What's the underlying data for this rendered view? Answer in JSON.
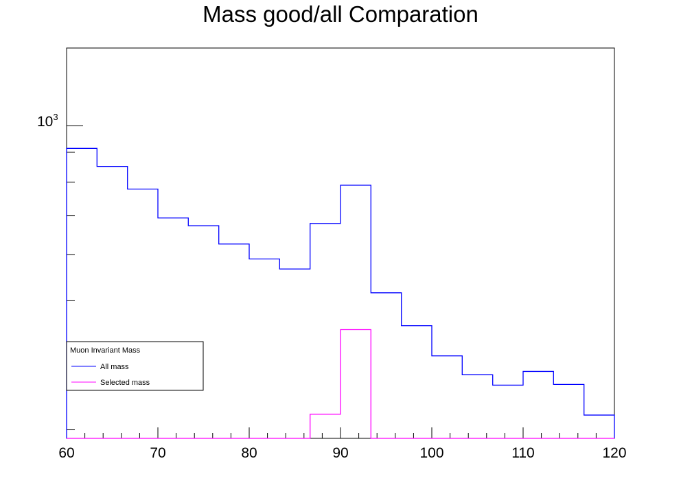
{
  "chart_data": {
    "type": "histogram",
    "title": "Mass good/all Comparation",
    "xlabel": "",
    "ylabel": "",
    "xlim": [
      60,
      120
    ],
    "ylim": [
      290,
      1360
    ],
    "y_scale": "log",
    "bin_edges": [
      60,
      63.33,
      66.67,
      70,
      73.33,
      76.67,
      80,
      83.33,
      86.67,
      90,
      93.33,
      96.67,
      100,
      103.33,
      106.67,
      110,
      113.33,
      116.67,
      120
    ],
    "x_ticks": [
      60,
      70,
      80,
      90,
      100,
      110,
      120
    ],
    "x_tick_labels": [
      "60",
      "70",
      "80",
      "90",
      "100",
      "110",
      "120"
    ],
    "y_tick_label_base": "10",
    "y_tick_label_exp": "3",
    "y_tick_label_value": 1000,
    "series": [
      {
        "name": "All mass",
        "color": "#0000ff",
        "values": [
          914,
          851,
          778,
          694,
          673,
          626,
          590,
          567,
          679,
          790,
          516,
          453,
          402,
          373,
          358,
          378,
          359,
          318
        ]
      },
      {
        "name": "Selected mass",
        "color": "#ff00ff",
        "values": [
          290,
          290,
          290,
          290,
          290,
          290,
          290,
          290,
          319,
          446,
          290,
          290,
          290,
          290,
          290,
          290,
          290,
          290
        ]
      }
    ],
    "legend": {
      "title": "Muon Invariant Mass",
      "placement": "bottom-left",
      "entries": [
        "All mass",
        "Selected mass"
      ]
    },
    "grid": false
  }
}
